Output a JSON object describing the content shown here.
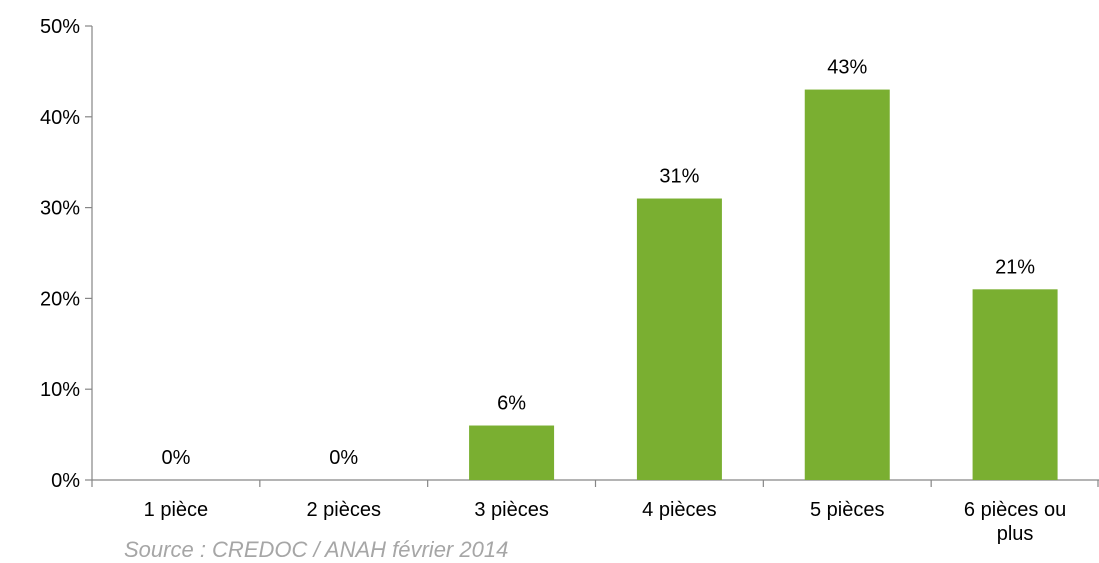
{
  "chart_data": {
    "type": "bar",
    "categories": [
      "1 pièce",
      "2 pièces",
      "3 pièces",
      "4 pièces",
      "5 pièces",
      "6 pièces ou plus"
    ],
    "category_label_lines": [
      [
        "1 pièce"
      ],
      [
        "2 pièces"
      ],
      [
        "3 pièces"
      ],
      [
        "4 pièces"
      ],
      [
        "5 pièces"
      ],
      [
        "6 pièces ou",
        "plus"
      ]
    ],
    "values": [
      0,
      0,
      6,
      31,
      43,
      21
    ],
    "data_labels": [
      "0%",
      "0%",
      "6%",
      "31%",
      "43%",
      "21%"
    ],
    "ylim": [
      0,
      50
    ],
    "yticks": [
      0,
      10,
      20,
      30,
      40,
      50
    ],
    "ytick_labels": [
      "0%",
      "10%",
      "20%",
      "30%",
      "40%",
      "50%"
    ],
    "title": "",
    "xlabel": "",
    "ylabel": "",
    "grid": false,
    "legend": "none",
    "bar_color": "#7aaf31"
  },
  "source_note": "Source : CREDOC / ANAH février 2014"
}
